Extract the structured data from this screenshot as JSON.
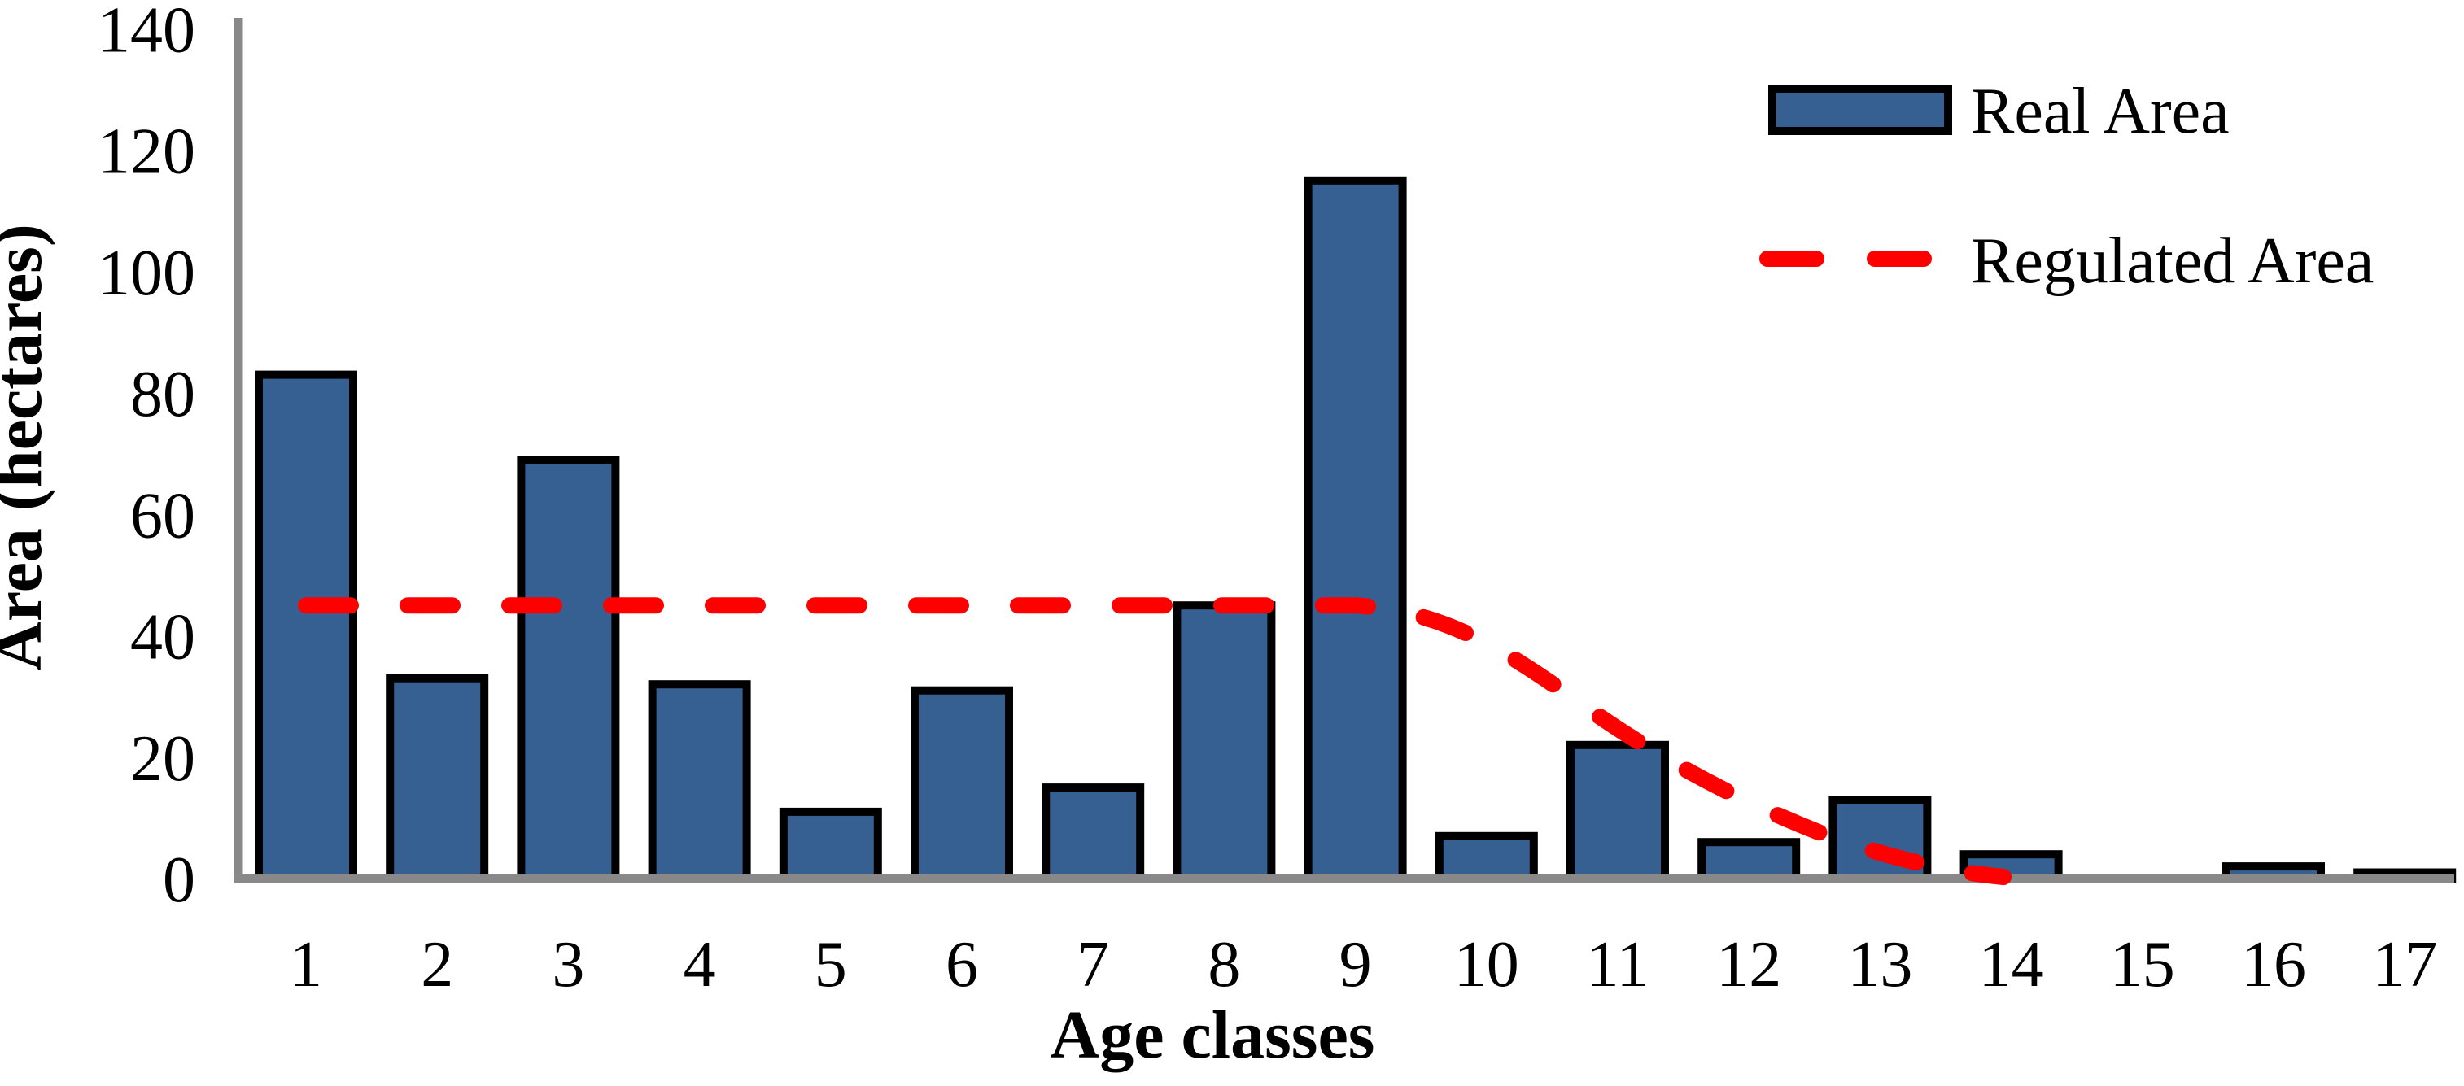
{
  "chart_data": {
    "type": "bar+line",
    "categories": [
      "1",
      "2",
      "3",
      "4",
      "5",
      "6",
      "7",
      "8",
      "9",
      "10",
      "11",
      "12",
      "13",
      "14",
      "15",
      "16",
      "17"
    ],
    "series": [
      {
        "name": "Real Area",
        "type": "bar",
        "values": [
          83,
          33,
          69,
          32,
          11,
          31,
          15,
          45,
          115,
          7,
          22,
          6,
          13,
          4,
          0,
          2,
          1
        ]
      },
      {
        "name": "Regulated Area",
        "type": "dashed-line",
        "values": [
          45,
          45,
          45,
          45,
          45,
          45,
          45,
          45,
          45,
          34,
          25,
          14,
          5,
          0,
          null,
          null,
          null
        ]
      }
    ],
    "title": "",
    "xlabel": "Age classes",
    "ylabel": "Area (hectares)",
    "ylim": [
      0,
      140
    ],
    "yticks": [
      0,
      20,
      40,
      60,
      80,
      100,
      120,
      140
    ],
    "grid": false,
    "legend_position": "top-right",
    "colors": {
      "bar_fill": "#376092",
      "bar_border": "#000000",
      "regulated_line": "#FF0000",
      "axis_line": "#898989",
      "text": "#000000",
      "background": "#FFFFFF"
    }
  },
  "legend": {
    "items": [
      {
        "label": "Real Area",
        "swatch": "blue-bar-swatch"
      },
      {
        "label": "Regulated Area",
        "swatch": "red-dashed-line-swatch"
      }
    ]
  }
}
